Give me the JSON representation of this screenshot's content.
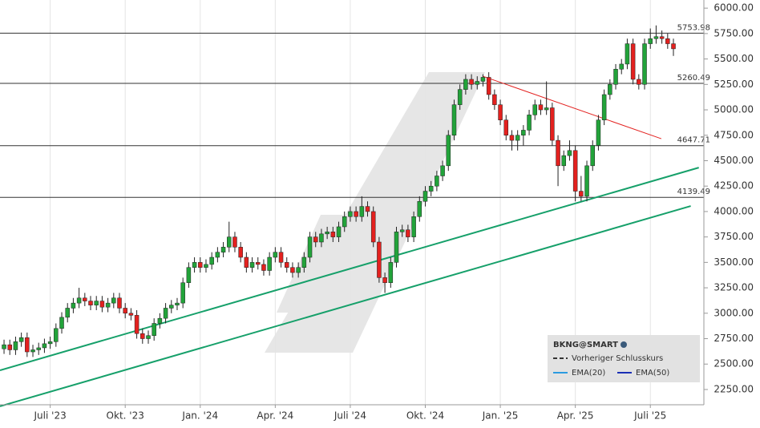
{
  "chart_data": {
    "type": "candlestick",
    "ohlc": [
      [
        2650,
        2740,
        2600,
        2690
      ],
      [
        2690,
        2740,
        2590,
        2640
      ],
      [
        2640,
        2770,
        2590,
        2720
      ],
      [
        2720,
        2810,
        2670,
        2760
      ],
      [
        2760,
        2810,
        2570,
        2620
      ],
      [
        2620,
        2690,
        2570,
        2640
      ],
      [
        2640,
        2710,
        2590,
        2660
      ],
      [
        2660,
        2750,
        2610,
        2700
      ],
      [
        2700,
        2770,
        2650,
        2720
      ],
      [
        2720,
        2900,
        2670,
        2850
      ],
      [
        2850,
        3010,
        2800,
        2960
      ],
      [
        2960,
        3100,
        2910,
        3050
      ],
      [
        3050,
        3150,
        3000,
        3100
      ],
      [
        3100,
        3250,
        3050,
        3150
      ],
      [
        3150,
        3200,
        3070,
        3120
      ],
      [
        3120,
        3170,
        3030,
        3080
      ],
      [
        3080,
        3170,
        3030,
        3120
      ],
      [
        3120,
        3170,
        3010,
        3060
      ],
      [
        3060,
        3150,
        3010,
        3100
      ],
      [
        3100,
        3200,
        3050,
        3150
      ],
      [
        3150,
        3200,
        3000,
        3050
      ],
      [
        3050,
        3100,
        2950,
        3000
      ],
      [
        3000,
        3050,
        2930,
        2980
      ],
      [
        2980,
        3030,
        2750,
        2800
      ],
      [
        2800,
        2850,
        2700,
        2750
      ],
      [
        2750,
        2830,
        2700,
        2780
      ],
      [
        2780,
        2950,
        2730,
        2900
      ],
      [
        2900,
        3000,
        2850,
        2950
      ],
      [
        2950,
        3100,
        2900,
        3050
      ],
      [
        3050,
        3130,
        3000,
        3080
      ],
      [
        3080,
        3150,
        3030,
        3100
      ],
      [
        3100,
        3350,
        3050,
        3300
      ],
      [
        3300,
        3500,
        3250,
        3450
      ],
      [
        3450,
        3550,
        3400,
        3500
      ],
      [
        3500,
        3550,
        3400,
        3450
      ],
      [
        3450,
        3530,
        3400,
        3480
      ],
      [
        3480,
        3600,
        3430,
        3550
      ],
      [
        3550,
        3650,
        3500,
        3600
      ],
      [
        3600,
        3700,
        3550,
        3650
      ],
      [
        3650,
        3900,
        3600,
        3750
      ],
      [
        3750,
        3800,
        3600,
        3650
      ],
      [
        3650,
        3700,
        3500,
        3550
      ],
      [
        3550,
        3600,
        3400,
        3450
      ],
      [
        3450,
        3550,
        3400,
        3500
      ],
      [
        3500,
        3550,
        3430,
        3480
      ],
      [
        3480,
        3530,
        3370,
        3420
      ],
      [
        3420,
        3600,
        3370,
        3550
      ],
      [
        3550,
        3650,
        3500,
        3600
      ],
      [
        3600,
        3650,
        3450,
        3500
      ],
      [
        3500,
        3550,
        3400,
        3450
      ],
      [
        3450,
        3500,
        3350,
        3400
      ],
      [
        3400,
        3500,
        3350,
        3450
      ],
      [
        3450,
        3600,
        3400,
        3550
      ],
      [
        3550,
        3800,
        3500,
        3750
      ],
      [
        3750,
        3800,
        3650,
        3700
      ],
      [
        3700,
        3830,
        3650,
        3780
      ],
      [
        3780,
        3850,
        3730,
        3800
      ],
      [
        3800,
        3850,
        3700,
        3750
      ],
      [
        3750,
        3900,
        3700,
        3850
      ],
      [
        3850,
        4000,
        3800,
        3950
      ],
      [
        3950,
        4050,
        3900,
        4000
      ],
      [
        4000,
        4050,
        3900,
        3950
      ],
      [
        3950,
        4150,
        3900,
        4050
      ],
      [
        4050,
        4100,
        3950,
        4000
      ],
      [
        4000,
        4050,
        3650,
        3700
      ],
      [
        3700,
        3750,
        3300,
        3350
      ],
      [
        3350,
        3400,
        3200,
        3300
      ],
      [
        3300,
        3550,
        3250,
        3500
      ],
      [
        3500,
        3850,
        3450,
        3800
      ],
      [
        3800,
        3870,
        3750,
        3820
      ],
      [
        3820,
        3870,
        3700,
        3750
      ],
      [
        3750,
        4000,
        3700,
        3950
      ],
      [
        3950,
        4150,
        3900,
        4100
      ],
      [
        4100,
        4250,
        4050,
        4200
      ],
      [
        4200,
        4300,
        4150,
        4250
      ],
      [
        4250,
        4400,
        4200,
        4350
      ],
      [
        4350,
        4500,
        4300,
        4450
      ],
      [
        4450,
        4800,
        4400,
        4750
      ],
      [
        4750,
        5100,
        4700,
        5050
      ],
      [
        5050,
        5250,
        5000,
        5200
      ],
      [
        5200,
        5350,
        5150,
        5300
      ],
      [
        5300,
        5350,
        5200,
        5250
      ],
      [
        5250,
        5330,
        5200,
        5280
      ],
      [
        5280,
        5350,
        5230,
        5320
      ],
      [
        5320,
        5370,
        5100,
        5150
      ],
      [
        5150,
        5200,
        5000,
        5050
      ],
      [
        5050,
        5100,
        4850,
        4900
      ],
      [
        4900,
        4950,
        4700,
        4750
      ],
      [
        4750,
        4800,
        4600,
        4700
      ],
      [
        4700,
        4800,
        4600,
        4750
      ],
      [
        4750,
        4850,
        4650,
        4800
      ],
      [
        4800,
        5000,
        4750,
        4950
      ],
      [
        4950,
        5100,
        4900,
        5050
      ],
      [
        5050,
        5100,
        4950,
        5000
      ],
      [
        5000,
        5280,
        4950,
        5020
      ],
      [
        5020,
        5070,
        4650,
        4700
      ],
      [
        4700,
        4750,
        4250,
        4450
      ],
      [
        4450,
        4600,
        4400,
        4550
      ],
      [
        4550,
        4700,
        4500,
        4600
      ],
      [
        4600,
        4650,
        4100,
        4200
      ],
      [
        4200,
        4350,
        4100,
        4150
      ],
      [
        4150,
        4500,
        4100,
        4450
      ],
      [
        4450,
        4700,
        4400,
        4650
      ],
      [
        4650,
        4950,
        4600,
        4900
      ],
      [
        4900,
        5200,
        4850,
        5150
      ],
      [
        5150,
        5300,
        5100,
        5250
      ],
      [
        5250,
        5450,
        5200,
        5400
      ],
      [
        5400,
        5500,
        5350,
        5450
      ],
      [
        5450,
        5700,
        5400,
        5650
      ],
      [
        5650,
        5700,
        5250,
        5300
      ],
      [
        5300,
        5350,
        5200,
        5250
      ],
      [
        5250,
        5700,
        5200,
        5650
      ],
      [
        5650,
        5800,
        5600,
        5700
      ],
      [
        5700,
        5830,
        5650,
        5720
      ],
      [
        5720,
        5780,
        5650,
        5700
      ],
      [
        5700,
        5750,
        5600,
        5650
      ],
      [
        5650,
        5700,
        5530,
        5600
      ]
    ],
    "up_color": "#22a33a",
    "down_color": "#e3211f",
    "xlim": [
      -0.7,
      121
    ],
    "xticks": [
      {
        "value": 8,
        "label": "Juli '23"
      },
      {
        "value": 21,
        "label": "Okt. '23"
      },
      {
        "value": 34,
        "label": "Jan. '24"
      },
      {
        "value": 47,
        "label": "Apr. '24"
      },
      {
        "value": 60,
        "label": "Juli '24"
      },
      {
        "value": 73,
        "label": "Okt. '24"
      },
      {
        "value": 86,
        "label": "Jan. '25"
      },
      {
        "value": 99,
        "label": "Apr. '25"
      },
      {
        "value": 112,
        "label": "Juli '25"
      }
    ],
    "ylim": [
      2100,
      6080
    ],
    "yticks": [
      {
        "value": 2250,
        "label": "2250.00"
      },
      {
        "value": 2500,
        "label": "2500.00"
      },
      {
        "value": 2750,
        "label": "2750.00"
      },
      {
        "value": 3000,
        "label": "3000.00"
      },
      {
        "value": 3250,
        "label": "3250.00"
      },
      {
        "value": 3500,
        "label": "3500.00"
      },
      {
        "value": 3750,
        "label": "3750.00"
      },
      {
        "value": 4000,
        "label": "4000.00"
      },
      {
        "value": 4250,
        "label": "4250.00"
      },
      {
        "value": 4500,
        "label": "4500.00"
      },
      {
        "value": 4750,
        "label": "4750.00"
      },
      {
        "value": 5000,
        "label": "5000.00"
      },
      {
        "value": 5250,
        "label": "5250.00"
      },
      {
        "value": 5500,
        "label": "5500.00"
      },
      {
        "value": 5750,
        "label": "5750.00"
      },
      {
        "value": 6000,
        "label": "6000.00"
      }
    ],
    "grid": true,
    "levels": [
      5753.98,
      5260.49,
      4647.71,
      4139.49
    ],
    "trendlines": [
      {
        "color": "#e3211f",
        "x": [
          83,
          113.9
        ],
        "y": [
          5330,
          4716
        ]
      },
      {
        "color": "#16a06a",
        "x": [
          -0.7,
          120.4
        ],
        "y": [
          2439,
          4432
        ]
      },
      {
        "color": "#16a06a",
        "x": [
          -0.7,
          119
        ],
        "y": [
          2085,
          4054
        ]
      }
    ],
    "legend": {
      "title": "BKNG@SMART",
      "items": [
        {
          "name": "Vorheriger Schlusskurs",
          "color": "#333333",
          "dash": true
        },
        {
          "name": "EMA(20)",
          "color": "#2b9be0",
          "dash": false
        },
        {
          "name": "EMA(50)",
          "color": "#1a2fb5",
          "dash": false
        }
      ]
    }
  }
}
